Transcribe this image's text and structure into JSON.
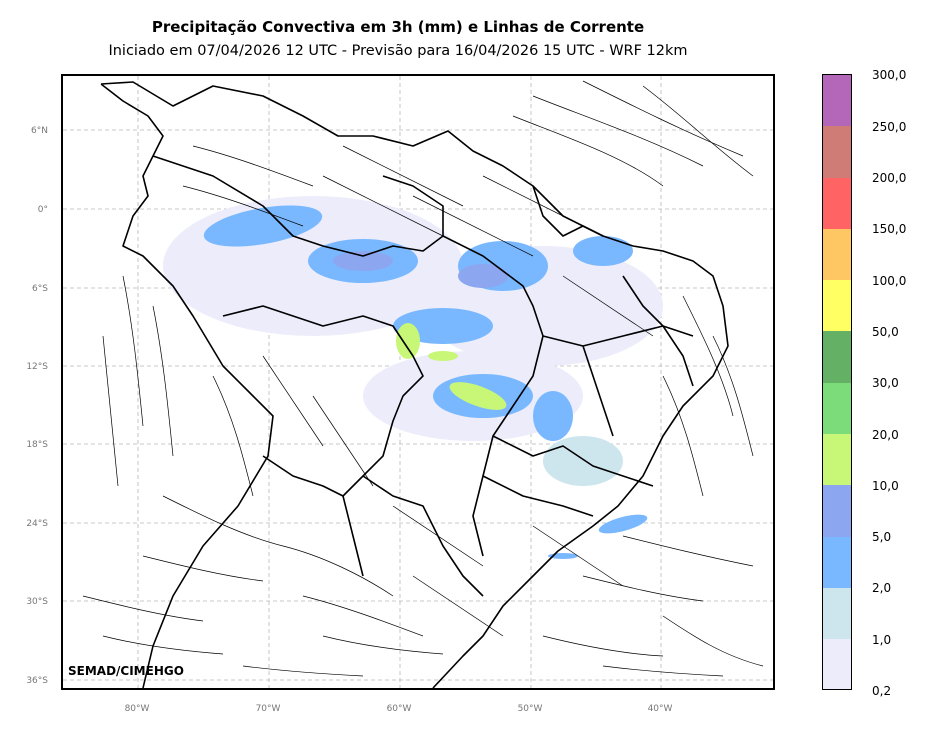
{
  "header": {
    "title": "Precipitação Convectiva em 3h (mm) e Linhas de Corrente",
    "subtitle": "Iniciado em 07/04/2026 12 UTC - Previsão para 16/04/2026 15 UTC - WRF 12km"
  },
  "map": {
    "lat_labels": [
      "6°N",
      "0°",
      "6°S",
      "12°S",
      "18°S",
      "24°S",
      "30°S",
      "36°S"
    ],
    "lon_labels": [
      "80°W",
      "70°W",
      "60°W",
      "50°W",
      "40°W"
    ],
    "credit": "SEMAD/CIMEHGO",
    "grid": true,
    "streamline_color": "#000000",
    "border_color": "#000000"
  },
  "colorbar": {
    "labels": [
      "0,2",
      "1,0",
      "2,0",
      "5,0",
      "10,0",
      "20,0",
      "30,0",
      "50,0",
      "100,0",
      "150,0",
      "200,0",
      "250,0",
      "300,0"
    ],
    "colors": [
      "#ececfb",
      "#cde6ee",
      "#79b8ff",
      "#8ca6f0",
      "#c8f777",
      "#7ddc7a",
      "#64b064",
      "#ffff63",
      "#ffc763",
      "#ff6363",
      "#d07c76",
      "#b466b8"
    ]
  }
}
